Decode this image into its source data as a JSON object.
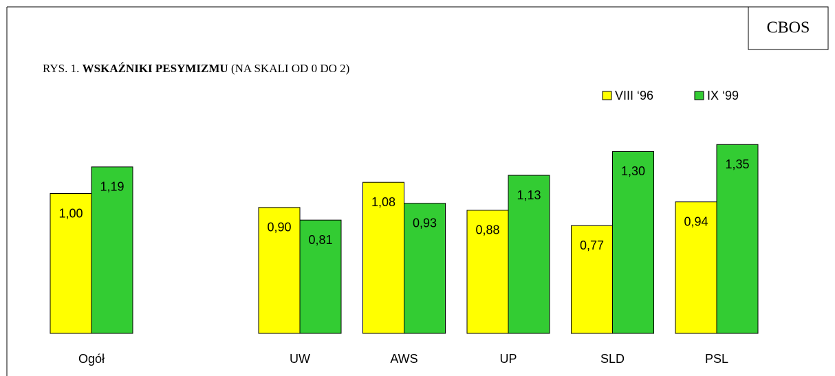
{
  "chart_data": {
    "type": "bar",
    "badge": "CBOS",
    "title_prefix": "RYS. 1.",
    "title": "WSKAŹNIKI PESYMIZMU",
    "title_suffix": "(NA SKALI OD 0 DO 2)",
    "categories": [
      "Ogół",
      null,
      "UW",
      "AWS",
      "UP",
      "SLD",
      "PSL"
    ],
    "series": [
      {
        "name": "VIII ‘96",
        "color": "#ffff00",
        "values": [
          1.0,
          null,
          0.9,
          1.08,
          0.88,
          0.77,
          0.94
        ],
        "value_labels": [
          "1,00",
          null,
          "0,90",
          "1,08",
          "0,88",
          "0,77",
          "0,94"
        ]
      },
      {
        "name": "IX ‘99",
        "color": "#33cc33",
        "values": [
          1.19,
          null,
          0.81,
          0.93,
          1.13,
          1.3,
          1.35
        ],
        "value_labels": [
          "1,19",
          null,
          "0,81",
          "0,93",
          "1,13",
          "1,30",
          "1,35"
        ]
      }
    ],
    "ylim": [
      0,
      2
    ],
    "legend": "top-right"
  }
}
